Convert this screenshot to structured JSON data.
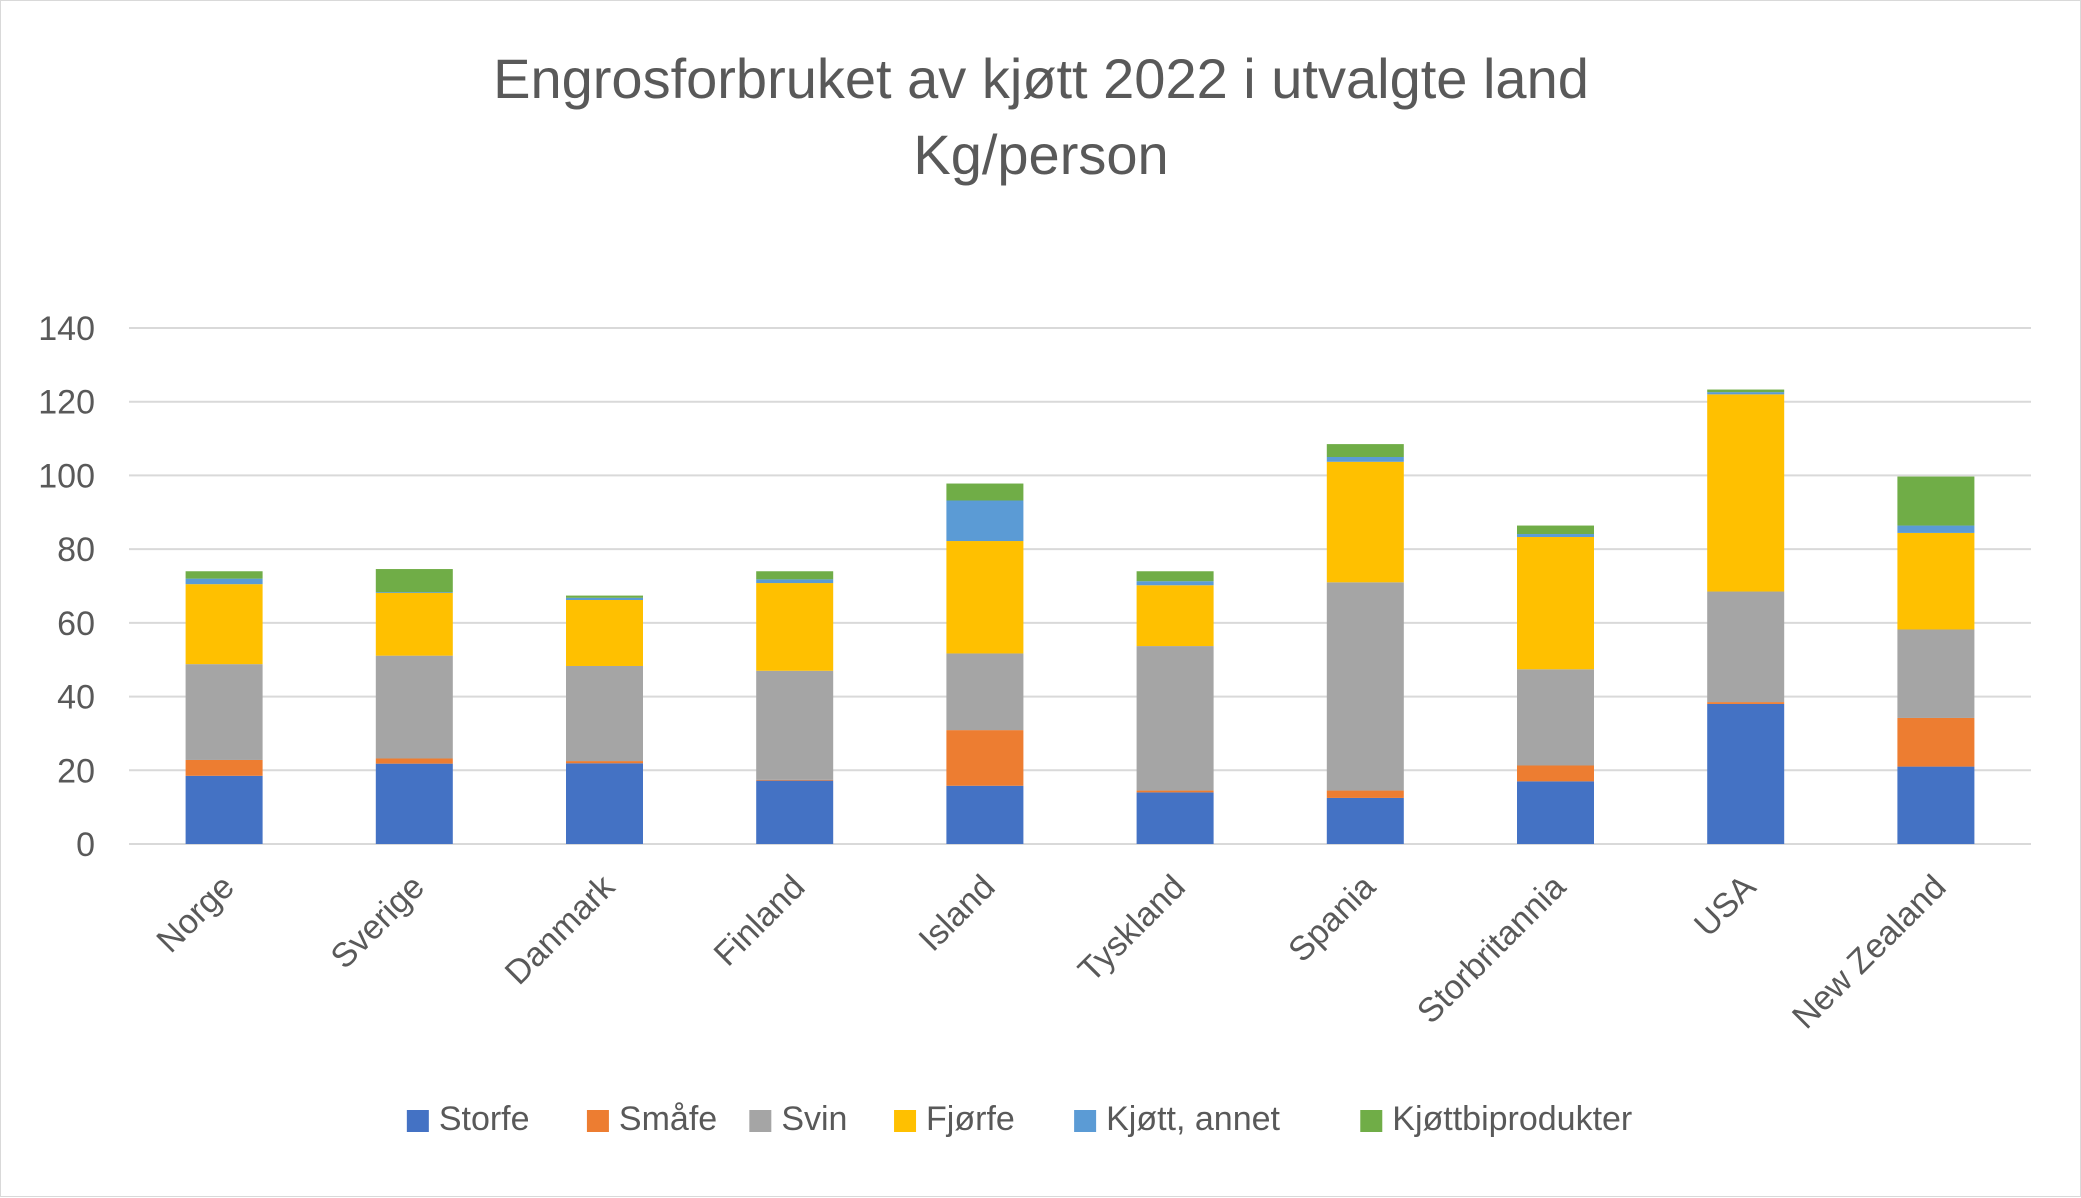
{
  "chart_data": {
    "type": "bar",
    "stacked": true,
    "title": "Engrosforbruket av kjøtt 2022 i utvalgte land",
    "subtitle": "Kg/person",
    "xlabel": "",
    "ylabel": "",
    "ylim": [
      0,
      140
    ],
    "yticks": [
      "0",
      "20",
      "40",
      "60",
      "80",
      "100",
      "120",
      "140"
    ],
    "grid": true,
    "legend_position": "bottom",
    "categories": [
      "Norge",
      "Sverige",
      "Danmark",
      "Finland",
      "Island",
      "Tyskland",
      "Spania",
      "Storbritannia",
      "USA",
      "New Zealand"
    ],
    "series": [
      {
        "name": "Storfe",
        "color": "#4472C4",
        "values": [
          18.5,
          21.8,
          21.9,
          17.2,
          15.8,
          14.0,
          12.5,
          17.0,
          38.0,
          21.0
        ]
      },
      {
        "name": "Småfe",
        "color": "#ED7D31",
        "values": [
          4.3,
          1.4,
          0.6,
          0.2,
          15.1,
          0.5,
          2.0,
          4.3,
          0.5,
          13.2
        ]
      },
      {
        "name": "Svin",
        "color": "#A5A5A5",
        "values": [
          26.0,
          27.9,
          25.8,
          29.6,
          20.8,
          39.2,
          56.5,
          26.1,
          30.0,
          24.0
        ]
      },
      {
        "name": "Fjørfe",
        "color": "#FFC000",
        "values": [
          21.7,
          17.0,
          17.9,
          23.8,
          30.5,
          16.5,
          32.7,
          35.9,
          53.5,
          26.2
        ]
      },
      {
        "name": "Kjøtt, annet",
        "color": "#5B9BD5",
        "values": [
          1.5,
          0.2,
          0.6,
          1.0,
          11.0,
          1.1,
          1.3,
          0.8,
          0.6,
          2.0
        ]
      },
      {
        "name": "Kjøttbiprodukter",
        "color": "#70AD47",
        "values": [
          2.0,
          6.3,
          0.6,
          2.2,
          4.6,
          2.7,
          3.5,
          2.3,
          0.7,
          13.3
        ]
      }
    ]
  }
}
